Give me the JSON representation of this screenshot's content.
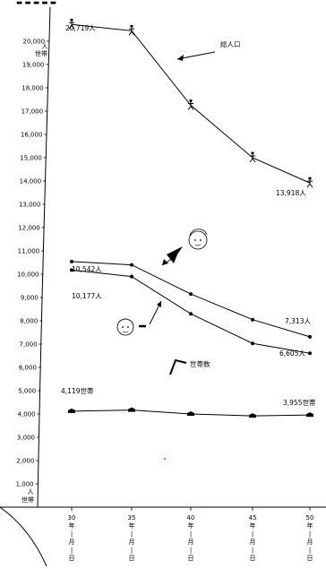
{
  "chart_data": {
    "type": "line",
    "title": "",
    "x": [
      "30年|月|日",
      "35年|月|日",
      "40年|月|日",
      "45年|月|日",
      "50年|月|日"
    ],
    "ylim": [
      0,
      21000
    ],
    "yticks": [
      "20,000",
      "19,000",
      "18,000",
      "17,000",
      "16,000",
      "15,000",
      "14,000",
      "13,000",
      "12,000",
      "11,000",
      "10,000",
      "9,000",
      "8,000",
      "7,000",
      "6,000",
      "5,000",
      "4,000",
      "3,000",
      "2,000",
      "1,000"
    ],
    "ytick_values": [
      20000,
      19000,
      18000,
      17000,
      16000,
      15000,
      14000,
      13000,
      12000,
      11000,
      10000,
      9000,
      8000,
      7000,
      6000,
      5000,
      4000,
      3000,
      2000,
      1000
    ],
    "unit_top": [
      "人",
      "世帯"
    ],
    "unit_bottom": [
      "人",
      "世帯"
    ],
    "series": [
      {
        "name": "総人口",
        "values": [
          20719,
          20450,
          17250,
          15000,
          13918
        ]
      },
      {
        "name": "",
        "values": [
          10542,
          10400,
          9150,
          8050,
          7313
        ]
      },
      {
        "name": "",
        "values": [
          10177,
          9900,
          8300,
          7030,
          6605
        ]
      },
      {
        "name": "世帯数",
        "values": [
          4119,
          4170,
          4000,
          3920,
          3955
        ]
      }
    ],
    "data_labels": [
      "20,719人",
      "13,918人",
      "10,542人",
      "7,313人",
      "10,177人",
      "6,605人",
      "4,119世帯",
      "3,955世帯"
    ]
  }
}
